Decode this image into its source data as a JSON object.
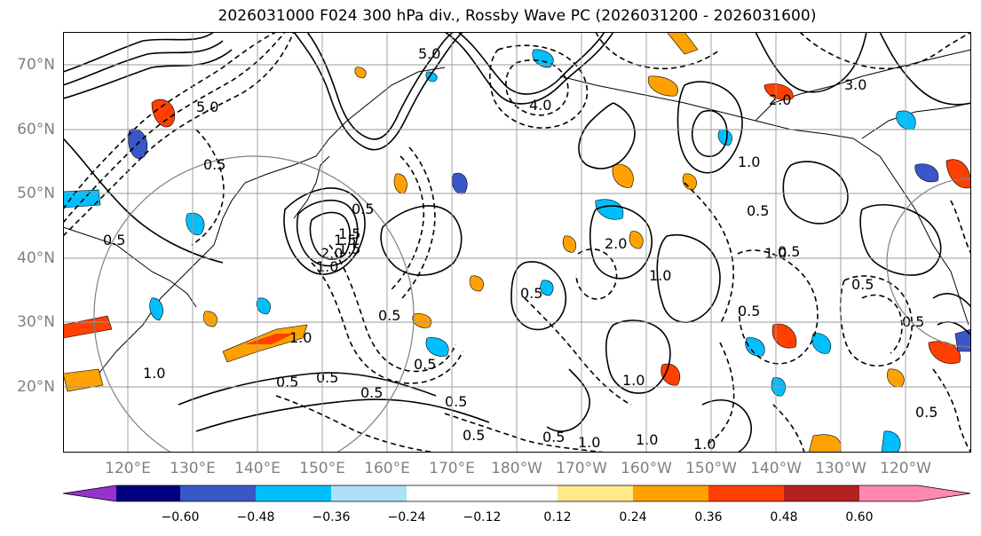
{
  "title": "2026031000 F024 300 hPa div., Rossby Wave PC (2026031200 - 2026031600)",
  "lat_labels": [
    "70°N",
    "60°N",
    "50°N",
    "40°N",
    "30°N",
    "20°N"
  ],
  "lon_labels": [
    "120°E",
    "130°E",
    "140°E",
    "150°E",
    "160°E",
    "170°E",
    "180°W",
    "170°W",
    "160°W",
    "150°W",
    "140°W",
    "130°W",
    "120°W"
  ],
  "contour_labels": [
    "5.0",
    "4.0",
    "5.0",
    "2.0",
    "3.0",
    "0.5",
    "1.0",
    "1.5",
    "0.5",
    "0.5",
    "1.0",
    "0.5",
    "0.5",
    "0.5",
    "0.5",
    "0.5",
    "0.5",
    "1.0",
    "0.5",
    "1.0",
    "0.5",
    "1.0",
    "2.0",
    "1.5",
    "0.5",
    "0.5",
    "0.5",
    "1.5",
    "1.0",
    "1.0",
    "0.5",
    "1.0",
    "1.0",
    "0.5",
    "2.0",
    "1.0",
    "0.5",
    "0.5"
  ],
  "colorbar": {
    "ticks": [
      "−0.60",
      "−0.48",
      "−0.36",
      "−0.24",
      "−0.12",
      "0.12",
      "0.24",
      "0.36",
      "0.48",
      "0.60"
    ],
    "colors": [
      "#9932cc",
      "#000080",
      "#3a57c8",
      "#00bfff",
      "#aee0fa",
      "#ffffff",
      "#ffe98a",
      "#ffa200",
      "#ff4000",
      "#b22222",
      "#ff88b0"
    ]
  }
}
